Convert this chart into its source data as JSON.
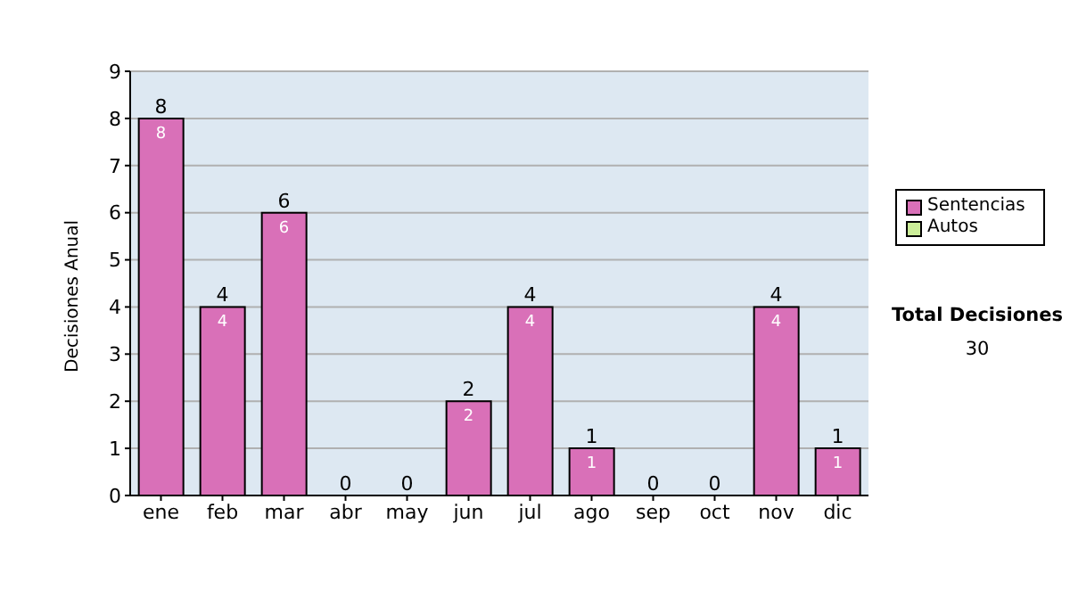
{
  "chart_data": {
    "type": "bar",
    "stacked": true,
    "ylabel": "Decisiones Anual",
    "categories": [
      "ene",
      "feb",
      "mar",
      "abr",
      "may",
      "jun",
      "jul",
      "ago",
      "sep",
      "oct",
      "nov",
      "dic"
    ],
    "series": [
      {
        "name": "Sentencias",
        "color": "#d970b8",
        "values": [
          8,
          4,
          6,
          0,
          0,
          2,
          4,
          1,
          0,
          0,
          4,
          1
        ],
        "value_labels": [
          "8",
          "4",
          "6",
          null,
          null,
          "2",
          "4",
          "1",
          null,
          null,
          "4",
          "1"
        ]
      },
      {
        "name": "Autos",
        "color": "#ccee99",
        "values": [
          0,
          0,
          0,
          0,
          0,
          0,
          0,
          0,
          0,
          0,
          0,
          0
        ]
      }
    ],
    "totals": [
      "8",
      "4",
      "6",
      "0",
      "0",
      "2",
      "4",
      "1",
      "0",
      "0",
      "4",
      "1"
    ],
    "ylim": [
      0,
      9
    ],
    "yticks": [
      0,
      1,
      2,
      3,
      4,
      5,
      6,
      7,
      8,
      9
    ],
    "grid": "y",
    "legend": "right",
    "annotations": [
      "Total Decisiones",
      "30"
    ]
  }
}
